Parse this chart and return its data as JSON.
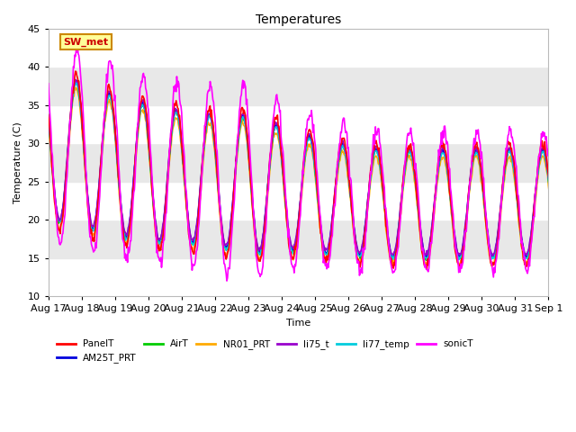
{
  "title": "Temperatures",
  "xlabel": "Time",
  "ylabel": "Temperature (C)",
  "ylim": [
    10,
    45
  ],
  "series": {
    "PanelT": {
      "color": "#ff0000",
      "lw": 1.2
    },
    "AM25T_PRT": {
      "color": "#0000dd",
      "lw": 1.2
    },
    "AirT": {
      "color": "#00cc00",
      "lw": 1.2
    },
    "NR01_PRT": {
      "color": "#ffaa00",
      "lw": 1.2
    },
    "li75_t": {
      "color": "#9900cc",
      "lw": 1.2
    },
    "li77_temp": {
      "color": "#00ccdd",
      "lw": 1.2
    },
    "sonicT": {
      "color": "#ff00ff",
      "lw": 1.2
    }
  },
  "xtick_labels": [
    "Aug 17",
    "Aug 18",
    "Aug 19",
    "Aug 20",
    "Aug 21",
    "Aug 22",
    "Aug 23",
    "Aug 24",
    "Aug 25",
    "Aug 26",
    "Aug 27",
    "Aug 28",
    "Aug 29",
    "Aug 30",
    "Aug 31",
    "Sep 1"
  ],
  "xtick_positions": [
    0,
    24,
    48,
    72,
    96,
    120,
    144,
    168,
    192,
    216,
    240,
    264,
    288,
    312,
    336,
    360
  ],
  "yticks": [
    10,
    15,
    20,
    25,
    30,
    35,
    40,
    45
  ],
  "hband_colors": [
    "#ffffff",
    "#e8e8e8"
  ],
  "annotation_text": "SW_met",
  "annotation_color": "#cc0000",
  "annotation_bg": "#ffff99",
  "annotation_border": "#cc8800",
  "fig_bg": "#ffffff",
  "plot_bg": "#ffffff"
}
